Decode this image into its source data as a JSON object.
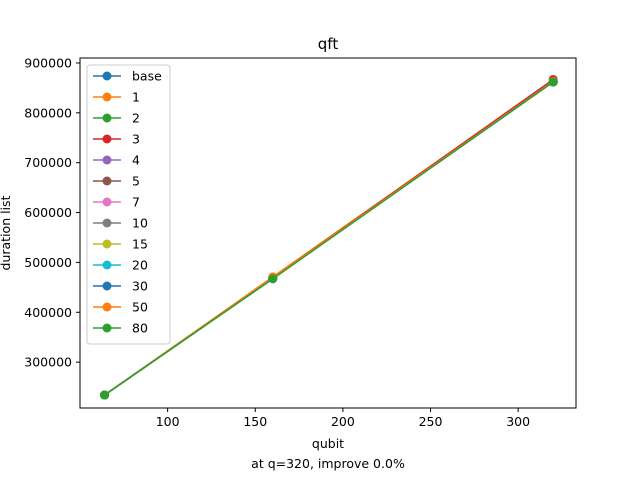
{
  "chart_data": {
    "type": "line",
    "title": "qft",
    "xlabel": "qubit",
    "ylabel": "duration list",
    "footnote": "at q=320, improve 0.0%",
    "x": [
      64,
      160,
      320
    ],
    "xlim": [
      50,
      333
    ],
    "ylim": [
      208000,
      910000
    ],
    "xticks": [
      100,
      150,
      200,
      250,
      300
    ],
    "yticks": [
      300000,
      400000,
      500000,
      600000,
      700000,
      800000,
      900000
    ],
    "legend_position": "upper left",
    "grid": false,
    "series": [
      {
        "name": "base",
        "color": "#1f77b4",
        "values": [
          234000,
          468000,
          862000
        ]
      },
      {
        "name": "1",
        "color": "#ff7f0e",
        "values": [
          234000,
          471000,
          866000
        ]
      },
      {
        "name": "2",
        "color": "#2ca02c",
        "values": [
          234000,
          468000,
          862000
        ]
      },
      {
        "name": "3",
        "color": "#d62728",
        "values": [
          234000,
          469000,
          867000
        ]
      },
      {
        "name": "4",
        "color": "#9467bd",
        "values": [
          234000,
          468000,
          863000
        ]
      },
      {
        "name": "5",
        "color": "#8c564b",
        "values": [
          234000,
          468000,
          863000
        ]
      },
      {
        "name": "7",
        "color": "#e377c2",
        "values": [
          234000,
          468000,
          863000
        ]
      },
      {
        "name": "10",
        "color": "#7f7f7f",
        "values": [
          234000,
          468000,
          862000
        ]
      },
      {
        "name": "15",
        "color": "#bcbd22",
        "values": [
          234000,
          468000,
          862000
        ]
      },
      {
        "name": "20",
        "color": "#17becf",
        "values": [
          234000,
          468000,
          862000
        ]
      },
      {
        "name": "30",
        "color": "#1f77b4",
        "values": [
          234000,
          468000,
          862000
        ]
      },
      {
        "name": "50",
        "color": "#ff7f0e",
        "values": [
          234000,
          469000,
          863000
        ]
      },
      {
        "name": "80",
        "color": "#2ca02c",
        "values": [
          234000,
          467000,
          862000
        ]
      }
    ]
  }
}
